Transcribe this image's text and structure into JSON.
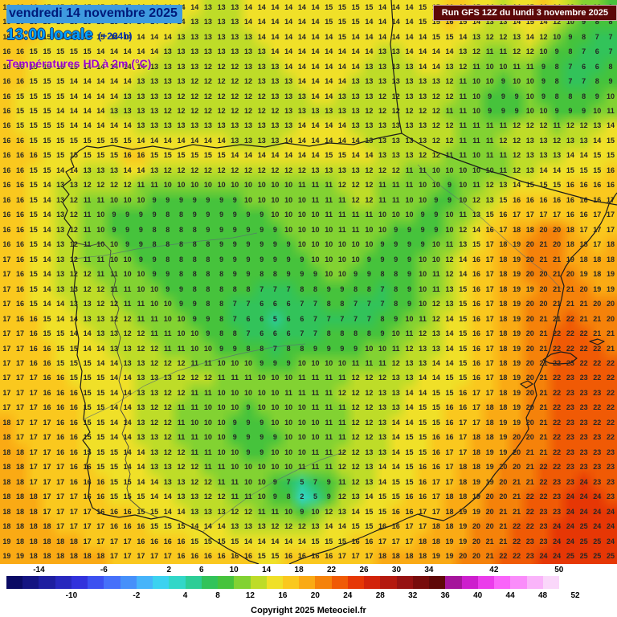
{
  "header": {
    "date_line": "vendredi 14 novembre 2025",
    "time_line": "13:00 locale",
    "offset": "(+264h)",
    "subtitle": "Températures HD à 2m (°C)"
  },
  "run_info": "Run GFS 12Z du lundi 3 novembre 2025",
  "copyright": "Copyright 2025 Meteociel.fr",
  "legend": {
    "min": -18,
    "max": 52,
    "segment_colors": [
      "#0a0a64",
      "#141482",
      "#1e1ea0",
      "#2828be",
      "#3232dc",
      "#3c50f0",
      "#4670fa",
      "#4690fa",
      "#46b4fa",
      "#3cd2f0",
      "#32d7c8",
      "#2dcd96",
      "#32c35a",
      "#46c33c",
      "#82d232",
      "#bedc28",
      "#f0e028",
      "#fac81e",
      "#faaa14",
      "#f5820a",
      "#f05a05",
      "#e63705",
      "#d2230a",
      "#b4190f",
      "#961212",
      "#780c0c",
      "#5f0808",
      "#a5149b",
      "#cd1ecd",
      "#eb3ceb",
      "#fa64fa",
      "#fa8cfa",
      "#fab4fa",
      "#fad7fa",
      "#ffffff"
    ],
    "top_ticks": [
      "-14",
      "-6",
      "2",
      "6",
      "10",
      "14",
      "18",
      "22",
      "26",
      "30",
      "34",
      "42",
      "50"
    ],
    "bottom_ticks": [
      "-10",
      "-2",
      "4",
      "8",
      "12",
      "16",
      "20",
      "24",
      "28",
      "32",
      "36",
      "40",
      "44",
      "48",
      "52"
    ]
  },
  "map": {
    "cols": 46,
    "rows": 38,
    "temps": [
      "16 16 16 15 15 15 15 15 15 15 14 14 14 14 14 13 13 13 14 14 14 14 14 14 15 15 15 15 14 14 14 15 15 16 16 15 14 13 14 15 16 14 12 11 10 9",
      "16 16 16 15 15 15 15 15 15 14 14 14 14 14 13 13 13 13 14 14 14 14 14 14 15 15 15 14 14 14 14 15 15 16 15 14 13 13 14 15 14 12 10 9 8 8",
      "16 16 16 15 15 15 15 15 14 14 14 14 14 13 13 13 13 13 13 14 14 14 14 14 14 15 14 14 14 14 14 14 15 15 14 13 12 12 13 14 12 10 9 8 7 7",
      "16 16 15 15 15 15 15 14 14 14 14 14 13 13 13 13 13 13 13 13 14 14 14 14 14 14 14 14 13 13 14 14 14 14 13 12 11 11 12 12 10 9 8 7 6 7",
      "16 16 15 15 15 15 14 14 14 14 14 13 13 13 13 12 12 12 13 13 13 14 14 14 14 14 14 13 13 13 13 14 14 13 12 11 10 10 11 11 9 8 7 6 6 8",
      "16 16 15 15 15 14 14 14 14 14 13 13 13 13 12 12 12 12 12 13 13 13 14 14 14 14 13 13 13 13 13 13 13 12 11 10 10 9 10 10 9 8 7 7 8 9",
      "16 15 15 15 15 14 14 14 14 13 13 13 13 12 12 12 12 12 12 12 13 13 13 14 14 13 13 13 12 12 13 13 12 12 11 10 9 9 9 10 9 8 8 8 9 10",
      "16 15 15 15 14 14 14 14 13 13 13 13 12 12 12 12 12 12 12 12 12 13 13 13 13 13 13 12 12 12 12 12 12 11 11 10 9 9 9 10 10 9 9 9 10 11",
      "16 15 15 15 15 14 14 14 14 14 13 13 13 13 13 13 13 13 13 13 13 13 14 14 14 14 13 13 13 13 13 13 12 12 11 11 11 11 12 12 12 11 12 12 13 14",
      "16 16 15 15 15 15 15 15 15 15 14 14 14 14 14 14 14 13 13 13 13 14 14 14 14 14 14 13 13 13 13 13 12 12 11 11 11 12 12 13 13 12 13 13 14 15",
      "16 16 16 15 15 15 15 15 15 16 16 15 15 15 15 15 15 14 14 14 14 14 14 14 15 15 14 14 13 13 13 12 12 11 11 10 11 11 12 13 13 13 14 14 15 15",
      "16 16 15 15 14 14 13 13 13 14 14 13 12 12 12 12 12 12 12 12 12 12 12 13 13 13 13 12 12 12 11 11 10 10 10 10 10 11 12 13 14 14 15 15 15 16",
      "16 16 15 14 13 13 12 12 12 12 11 11 10 10 10 10 10 10 10 10 10 10 11 11 11 12 12 12 11 11 11 10 10 9 10 11 12 13 14 15 15 15 16 16 16 16",
      "16 16 15 14 13 12 11 11 10 10 10 9 9 9 9 9 9 9 10 10 10 10 10 11 11 11 12 12 11 11 10 10 9 9 10 12 13 15 16 16 16 16 16 16 16 17",
      "16 16 15 14 13 12 11 10 9 9 9 9 8 8 9 9 9 9 9 9 10 10 10 10 11 11 11 11 10 10 10 9 9 10 11 13 15 16 17 17 17 17 16 16 17 17",
      "16 16 15 14 13 12 11 10 9 9 9 8 8 8 8 9 9 9 9 9 9 10 10 10 10 11 11 10 10 9 9 9 9 10 12 14 16 17 18 18 20 20 18 17 17 17",
      "16 16 15 14 13 12 11 10 10 9 9 8 8 8 8 8 9 9 9 9 9 9 10 10 10 10 10 10 9 9 9 9 10 11 13 15 17 18 19 20 21 20 18 18 17 18",
      "17 16 15 14 13 12 11 11 10 10 9 9 8 8 8 8 9 9 9 9 9 9 9 10 10 10 10 9 9 9 9 10 10 12 14 16 17 18 19 20 21 21 19 18 18 18",
      "17 16 15 14 13 12 12 11 11 10 10 9 9 8 8 8 8 9 9 8 8 9 9 9 10 10 9 9 8 8 9 10 11 12 14 16 17 18 19 20 20 21 20 19 18 19",
      "17 16 15 14 13 13 12 12 11 11 10 10 9 9 8 8 8 8 8 7 7 7 8 8 9 9 8 8 7 8 9 10 11 13 15 16 17 18 19 19 20 21 21 20 19 19",
      "17 16 15 14 14 13 13 12 12 11 11 10 10 9 9 8 8 7 7 6 6 6 7 7 8 8 7 7 7 8 9 10 12 13 15 16 17 18 19 20 20 21 21 21 20 20",
      "17 16 16 15 14 14 13 13 12 12 11 11 10 10 9 9 8 7 6 6 5 6 6 7 7 7 7 7 8 9 10 11 12 14 15 16 17 18 19 20 21 21 22 21 21 20",
      "17 17 16 15 15 14 14 13 13 12 12 11 11 10 10 9 8 8 7 6 6 6 7 7 8 8 8 8 9 10 11 12 13 14 15 16 17 18 19 20 21 22 22 22 21 21",
      "17 17 16 16 15 15 14 14 13 13 12 12 11 11 10 10 9 9 8 8 7 8 8 9 9 9 9 10 10 11 12 13 13 14 15 16 17 18 19 20 21 22 22 22 22 21",
      "17 17 16 16 15 15 15 14 14 13 13 12 12 12 11 11 10 10 10 9 9 9 10 10 10 10 11 11 11 12 13 13 14 14 15 16 17 18 19 20 21 22 23 22 22 22",
      "17 17 17 16 16 15 15 15 14 14 13 13 13 12 12 12 11 11 11 10 10 10 11 11 11 11 12 12 12 13 13 14 14 15 15 16 17 18 19 20 21 22 23 23 22 22",
      "17 17 17 16 16 16 15 15 14 14 13 13 12 12 11 11 10 10 10 10 10 11 11 11 11 12 12 12 13 13 14 14 15 15 16 17 17 18 19 20 21 22 23 23 23 22",
      "17 17 17 16 16 16 15 15 14 14 13 12 12 11 11 10 10 10 9 10 10 10 10 11 11 11 12 12 13 13 14 15 15 16 16 17 18 18 19 20 21 22 23 23 22 22",
      "18 17 17 17 16 16 15 15 14 14 13 12 12 11 10 10 10 9 9 9 10 10 10 10 11 11 12 12 13 14 14 15 15 16 17 17 18 19 19 20 21 22 23 23 22 22",
      "18 17 17 17 16 16 15 15 14 14 13 13 12 11 11 10 10 9 9 9 9 10 10 10 11 11 12 12 13 14 15 15 16 16 17 18 18 19 20 20 21 22 23 23 23 22",
      "18 18 17 17 16 16 15 15 15 14 14 13 12 12 11 11 10 10 9 9 10 10 10 11 11 12 12 13 13 14 15 15 16 17 17 18 19 19 20 21 21 22 23 23 23 23",
      "18 18 17 17 17 16 16 15 15 14 14 13 13 12 12 11 11 10 10 10 10 10 11 11 11 12 12 13 14 14 15 16 16 17 18 18 19 20 20 21 22 22 23 23 23 23",
      "18 18 17 17 17 16 16 16 15 15 14 14 13 13 12 12 11 11 10 10 9 7 5 7 9 11 12 13 14 15 15 16 17 17 18 19 19 20 21 21 22 23 23 24 23 23",
      "18 18 18 17 17 17 16 16 15 15 15 14 14 13 13 12 12 11 11 10 9 8 2 5 9 12 13 14 15 15 16 16 17 18 18 19 20 20 21 22 22 23 24 24 24 23",
      "18 18 18 17 17 17 17 16 16 16 15 15 14 14 13 13 13 12 12 11 11 10 9 10 12 13 14 15 15 16 16 17 17 18 19 19 20 21 21 22 23 23 24 24 24 24",
      "18 18 18 18 17 17 17 17 16 16 16 15 15 15 14 14 14 13 13 13 12 12 12 13 14 14 15 15 16 16 17 17 18 18 19 20 20 21 22 22 23 24 24 25 24 24",
      "19 18 18 18 18 18 17 17 17 17 16 16 16 16 15 15 15 15 14 14 14 14 14 15 15 15 16 16 17 17 17 18 18 19 19 20 21 21 22 23 23 24 24 25 25 24",
      "19 19 18 18 18 18 18 18 17 17 17 17 17 16 16 16 16 16 16 15 15 16 16 16 16 17 17 17 18 18 18 18 19 19 20 20 21 22 22 23 24 24 25 25 25 25"
    ]
  }
}
